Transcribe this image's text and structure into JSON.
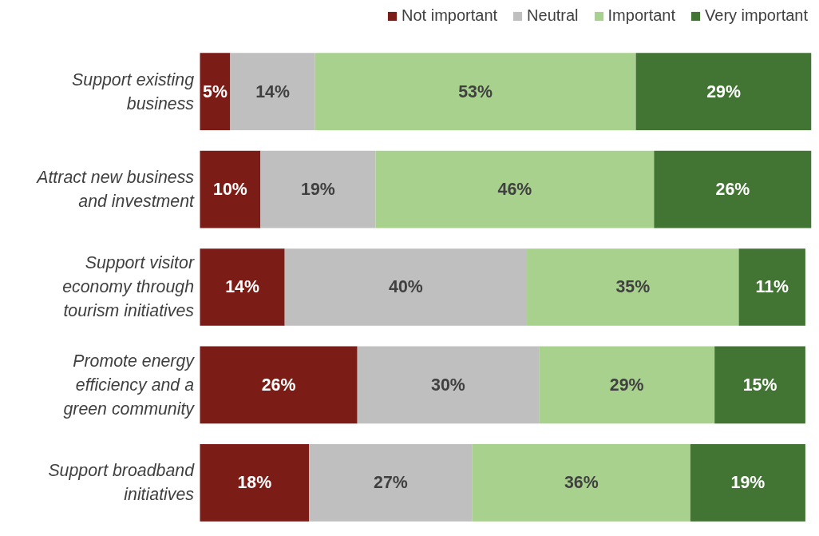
{
  "chart_data": {
    "type": "bar",
    "orientation": "horizontal",
    "stacked": true,
    "legend": "top",
    "grid": false,
    "categories": [
      "Support existing business",
      "Attract new business and investment",
      "Support visitor economy through tourism initiatives",
      "Promote energy efficiency and a green community",
      "Support broadband initiatives"
    ],
    "series": [
      {
        "name": "Not important",
        "color": "#7b1c16",
        "values": [
          5,
          10,
          14,
          26,
          18
        ],
        "value_labels": [
          "5%",
          "10%",
          "14%",
          "26%",
          "18%"
        ]
      },
      {
        "name": "Neutral",
        "color": "#bfbfbf",
        "values": [
          14,
          19,
          40,
          30,
          27
        ],
        "value_labels": [
          "14%",
          "19%",
          "40%",
          "30%",
          "27%"
        ]
      },
      {
        "name": "Important",
        "color": "#a9d18e",
        "values": [
          53,
          46,
          35,
          29,
          36
        ],
        "value_labels": [
          "53%",
          "46%",
          "35%",
          "29%",
          "36%"
        ]
      },
      {
        "name": "Very important",
        "color": "#427434",
        "values": [
          29,
          26,
          11,
          15,
          19
        ],
        "value_labels": [
          "29%",
          "26%",
          "11%",
          "15%",
          "19%"
        ]
      }
    ]
  }
}
